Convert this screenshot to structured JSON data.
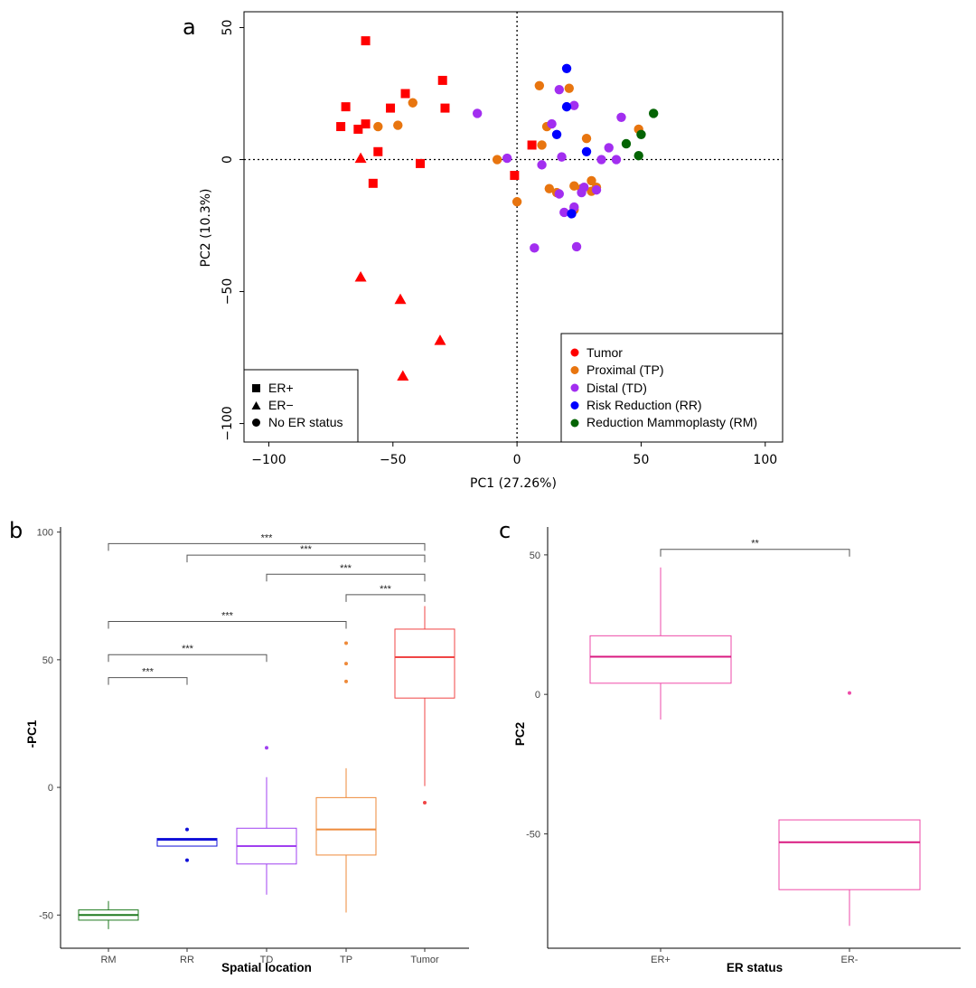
{
  "colors": {
    "Tumor": "#ff0000",
    "TP": "#e8750f",
    "TD": "#a22ef0",
    "RR": "#0000ff",
    "RM": "#046404",
    "box_RM": "#1f7a1f",
    "box_RR": "#1010d8",
    "box_TD": "#a040f0",
    "box_TP": "#ee8a3a",
    "box_Tumor": "#f04545",
    "box_ER": "#ee4aa8",
    "box_ER_median": "#d91a80"
  },
  "chart_data": [
    {
      "panel_label": "a",
      "type": "scatter",
      "xlabel": "PC1 (27.26%)",
      "ylabel": "PC2 (10.3%)",
      "xlim": [
        -110,
        107
      ],
      "ylim": [
        -107,
        56
      ],
      "xticks": [
        -100,
        -50,
        0,
        50,
        100
      ],
      "xtick_labels": [
        "−100",
        "−50",
        "0",
        "50",
        "100"
      ],
      "yticks": [
        50,
        0,
        -50,
        -100
      ],
      "ytick_labels": [
        "50",
        "0",
        "−50",
        "−100"
      ],
      "reference_lines": {
        "x": 0,
        "y": 0,
        "style": "dotted"
      },
      "shape_legend": {
        "position": "bottom-left",
        "entries": [
          {
            "shape": "square",
            "label": "ER+"
          },
          {
            "shape": "triangle",
            "label": "ER−"
          },
          {
            "shape": "circle",
            "label": "No ER status"
          }
        ]
      },
      "color_legend": {
        "position": "bottom-right",
        "entries": [
          {
            "group": "Tumor",
            "label": "Tumor"
          },
          {
            "group": "TP",
            "label": "Proximal (TP)"
          },
          {
            "group": "TD",
            "label": "Distal (TD)"
          },
          {
            "group": "RR",
            "label": "Risk Reduction (RR)"
          },
          {
            "group": "RM",
            "label": "Reduction Mammoplasty (RM)"
          }
        ]
      },
      "points": [
        {
          "x": -61,
          "y": 45,
          "group": "Tumor",
          "shape": "square"
        },
        {
          "x": -30,
          "y": 30,
          "group": "Tumor",
          "shape": "square"
        },
        {
          "x": -69,
          "y": 20,
          "group": "Tumor",
          "shape": "square"
        },
        {
          "x": -45,
          "y": 25,
          "group": "Tumor",
          "shape": "square"
        },
        {
          "x": -51,
          "y": 19.5,
          "group": "Tumor",
          "shape": "square"
        },
        {
          "x": -29,
          "y": 19.5,
          "group": "Tumor",
          "shape": "square"
        },
        {
          "x": -71,
          "y": 12.5,
          "group": "Tumor",
          "shape": "square"
        },
        {
          "x": -64,
          "y": 11.5,
          "group": "Tumor",
          "shape": "square"
        },
        {
          "x": -61,
          "y": 13.5,
          "group": "Tumor",
          "shape": "square"
        },
        {
          "x": -56,
          "y": 3,
          "group": "Tumor",
          "shape": "square"
        },
        {
          "x": -39,
          "y": -1.5,
          "group": "Tumor",
          "shape": "square"
        },
        {
          "x": -58,
          "y": -9,
          "group": "Tumor",
          "shape": "square"
        },
        {
          "x": 6,
          "y": 5.5,
          "group": "Tumor",
          "shape": "square"
        },
        {
          "x": -1,
          "y": -6,
          "group": "Tumor",
          "shape": "square"
        },
        {
          "x": -63,
          "y": 0.5,
          "group": "Tumor",
          "shape": "triangle"
        },
        {
          "x": -63,
          "y": -44.5,
          "group": "Tumor",
          "shape": "triangle"
        },
        {
          "x": -47,
          "y": -53,
          "group": "Tumor",
          "shape": "triangle"
        },
        {
          "x": -31,
          "y": -68.5,
          "group": "Tumor",
          "shape": "triangle"
        },
        {
          "x": -46,
          "y": -82,
          "group": "Tumor",
          "shape": "triangle"
        },
        {
          "x": -42,
          "y": 21.5,
          "group": "TP",
          "shape": "circle"
        },
        {
          "x": -56,
          "y": 12.5,
          "group": "TP",
          "shape": "circle"
        },
        {
          "x": -48,
          "y": 13,
          "group": "TP",
          "shape": "circle"
        },
        {
          "x": -8,
          "y": 0,
          "group": "TP",
          "shape": "circle"
        },
        {
          "x": 0,
          "y": -16,
          "group": "TP",
          "shape": "circle"
        },
        {
          "x": 9,
          "y": 28,
          "group": "TP",
          "shape": "circle"
        },
        {
          "x": 21,
          "y": 27,
          "group": "TP",
          "shape": "circle"
        },
        {
          "x": 12,
          "y": 12.5,
          "group": "TP",
          "shape": "circle"
        },
        {
          "x": 10,
          "y": 5.5,
          "group": "TP",
          "shape": "circle"
        },
        {
          "x": 28,
          "y": 8,
          "group": "TP",
          "shape": "circle"
        },
        {
          "x": 49,
          "y": 11.5,
          "group": "TP",
          "shape": "circle"
        },
        {
          "x": 13,
          "y": -11,
          "group": "TP",
          "shape": "circle"
        },
        {
          "x": 16,
          "y": -12.5,
          "group": "TP",
          "shape": "circle"
        },
        {
          "x": 23,
          "y": -10,
          "group": "TP",
          "shape": "circle"
        },
        {
          "x": 26,
          "y": -11,
          "group": "TP",
          "shape": "circle"
        },
        {
          "x": 30,
          "y": -8,
          "group": "TP",
          "shape": "circle"
        },
        {
          "x": 30,
          "y": -12,
          "group": "TP",
          "shape": "circle"
        },
        {
          "x": 32,
          "y": -10.5,
          "group": "TP",
          "shape": "circle"
        },
        {
          "x": 23,
          "y": -19,
          "group": "TP",
          "shape": "circle"
        },
        {
          "x": -16,
          "y": 17.5,
          "group": "TD",
          "shape": "circle"
        },
        {
          "x": -4,
          "y": 0.5,
          "group": "TD",
          "shape": "circle"
        },
        {
          "x": 17,
          "y": 26.5,
          "group": "TD",
          "shape": "circle"
        },
        {
          "x": 23,
          "y": 20.5,
          "group": "TD",
          "shape": "circle"
        },
        {
          "x": 14,
          "y": 13.5,
          "group": "TD",
          "shape": "circle"
        },
        {
          "x": 42,
          "y": 16,
          "group": "TD",
          "shape": "circle"
        },
        {
          "x": 37,
          "y": 4.5,
          "group": "TD",
          "shape": "circle"
        },
        {
          "x": 18,
          "y": 1,
          "group": "TD",
          "shape": "circle"
        },
        {
          "x": 10,
          "y": -2,
          "group": "TD",
          "shape": "circle"
        },
        {
          "x": 34,
          "y": 0,
          "group": "TD",
          "shape": "circle"
        },
        {
          "x": 40,
          "y": 0,
          "group": "TD",
          "shape": "circle"
        },
        {
          "x": 17,
          "y": -13,
          "group": "TD",
          "shape": "circle"
        },
        {
          "x": 26,
          "y": -12.5,
          "group": "TD",
          "shape": "circle"
        },
        {
          "x": 27,
          "y": -10.5,
          "group": "TD",
          "shape": "circle"
        },
        {
          "x": 32,
          "y": -11.5,
          "group": "TD",
          "shape": "circle"
        },
        {
          "x": 19,
          "y": -20,
          "group": "TD",
          "shape": "circle"
        },
        {
          "x": 23,
          "y": -18,
          "group": "TD",
          "shape": "circle"
        },
        {
          "x": 7,
          "y": -33.5,
          "group": "TD",
          "shape": "circle"
        },
        {
          "x": 24,
          "y": -33,
          "group": "TD",
          "shape": "circle"
        },
        {
          "x": 20,
          "y": 34.5,
          "group": "RR",
          "shape": "circle"
        },
        {
          "x": 20,
          "y": 20,
          "group": "RR",
          "shape": "circle"
        },
        {
          "x": 16,
          "y": 9.5,
          "group": "RR",
          "shape": "circle"
        },
        {
          "x": 28,
          "y": 3,
          "group": "RR",
          "shape": "circle"
        },
        {
          "x": 22,
          "y": -20.5,
          "group": "RR",
          "shape": "circle"
        },
        {
          "x": 55,
          "y": 17.5,
          "group": "RM",
          "shape": "circle"
        },
        {
          "x": 50,
          "y": 9.5,
          "group": "RM",
          "shape": "circle"
        },
        {
          "x": 44,
          "y": 6,
          "group": "RM",
          "shape": "circle"
        },
        {
          "x": 49,
          "y": 1.5,
          "group": "RM",
          "shape": "circle"
        }
      ]
    },
    {
      "panel_label": "b",
      "type": "box",
      "xlabel": "Spatial location",
      "ylabel": "-PC1",
      "ylim": [
        -63,
        102
      ],
      "yticks": [
        100,
        50,
        0,
        -50
      ],
      "ytick_labels": [
        "100",
        "50",
        "0",
        "-50"
      ],
      "categories": [
        "RM",
        "RR",
        "TD",
        "TP",
        "Tumor"
      ],
      "boxes": [
        {
          "category": "RM",
          "color_key": "box_RM",
          "whisker_low": -55.5,
          "q1": -52,
          "median": -50,
          "q3": -48,
          "whisker_high": -44.5,
          "outliers": []
        },
        {
          "category": "RR",
          "color_key": "box_RR",
          "whisker_low": -23,
          "q1": -23,
          "median": -20.5,
          "q3": -20,
          "whisker_high": -20,
          "outliers": [
            -16.5,
            -28.5
          ]
        },
        {
          "category": "TD",
          "color_key": "box_TD",
          "whisker_low": -42,
          "q1": -30,
          "median": -23,
          "q3": -16,
          "whisker_high": 4,
          "outliers": [
            15.5
          ]
        },
        {
          "category": "TP",
          "color_key": "box_TP",
          "whisker_low": -49,
          "q1": -26.5,
          "median": -16.5,
          "q3": -4,
          "whisker_high": 7.5,
          "outliers": [
            56.5,
            48.5,
            41.5
          ]
        },
        {
          "category": "Tumor",
          "color_key": "box_Tumor",
          "whisker_low": 0.5,
          "q1": 35,
          "median": 51,
          "q3": 62,
          "whisker_high": 71,
          "outliers": [
            -6
          ]
        }
      ],
      "significance": [
        {
          "from": "RM",
          "to": "Tumor",
          "y": 95.5,
          "label": "***"
        },
        {
          "from": "RR",
          "to": "Tumor",
          "y": 91,
          "label": "***"
        },
        {
          "from": "TD",
          "to": "Tumor",
          "y": 83.5,
          "label": "***"
        },
        {
          "from": "TP",
          "to": "Tumor",
          "y": 75.5,
          "label": "***"
        },
        {
          "from": "RM",
          "to": "TP",
          "y": 65,
          "label": "***"
        },
        {
          "from": "RM",
          "to": "TD",
          "y": 52,
          "label": "***"
        },
        {
          "from": "RM",
          "to": "RR",
          "y": 43,
          "label": "***"
        }
      ]
    },
    {
      "panel_label": "c",
      "type": "box",
      "xlabel": "ER status",
      "ylabel": "PC2",
      "ylim": [
        -91,
        60
      ],
      "yticks": [
        50,
        0,
        -50
      ],
      "ytick_labels": [
        "50",
        "0",
        "-50"
      ],
      "categories": [
        "ER+",
        "ER-"
      ],
      "boxes": [
        {
          "category": "ER+",
          "color_key": "box_ER",
          "whisker_low": -9,
          "q1": 4,
          "median": 13.5,
          "q3": 21,
          "whisker_high": 45.5,
          "outliers": []
        },
        {
          "category": "ER-",
          "color_key": "box_ER",
          "whisker_low": -83,
          "q1": -70,
          "median": -53,
          "q3": -45,
          "whisker_high": -45,
          "outliers": [
            0.5
          ]
        }
      ],
      "significance": [
        {
          "from": "ER+",
          "to": "ER-",
          "y": 52,
          "label": "**"
        }
      ]
    }
  ]
}
